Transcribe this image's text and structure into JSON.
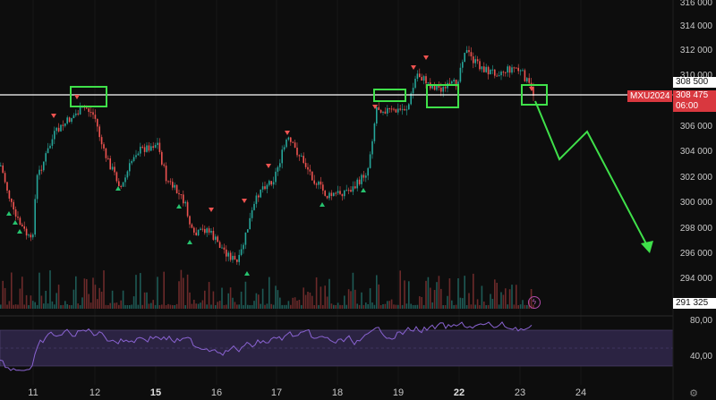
{
  "symbol": "MXU2024",
  "price_tags": {
    "upper": "308 500",
    "current": "308 475",
    "countdown": "06:00",
    "lower": "291 325"
  },
  "colors": {
    "background": "#0d0d0d",
    "candle_up": "#26a69a",
    "candle_down": "#ef5350",
    "volume_up": "#1e5a55",
    "volume_down": "#6b2a2a",
    "rsi_line": "#8a63d2",
    "rsi_band": "#2b2342",
    "marker_buy": "#26c26e",
    "marker_sell": "#ef5350",
    "annotation": "#3fe04a",
    "level_line": "#ffffff"
  },
  "y_axis": {
    "ticks": [
      "316 000",
      "314 000",
      "312 000",
      "310 000",
      "306 000",
      "304 000",
      "302 000",
      "300 000",
      "298 000",
      "296 000",
      "294 000"
    ]
  },
  "x_axis": {
    "ticks": [
      {
        "label": "11",
        "bold": false
      },
      {
        "label": "12",
        "bold": false
      },
      {
        "label": "15",
        "bold": true
      },
      {
        "label": "16",
        "bold": false
      },
      {
        "label": "17",
        "bold": false
      },
      {
        "label": "18",
        "bold": false
      },
      {
        "label": "19",
        "bold": false
      },
      {
        "label": "22",
        "bold": true
      },
      {
        "label": "23",
        "bold": false
      },
      {
        "label": "24",
        "bold": false
      }
    ]
  },
  "rsi_axis": {
    "ticks": [
      "80,00",
      "40,00"
    ]
  },
  "icons": {
    "settings": "gear-icon",
    "alert": "lightning-icon"
  }
}
